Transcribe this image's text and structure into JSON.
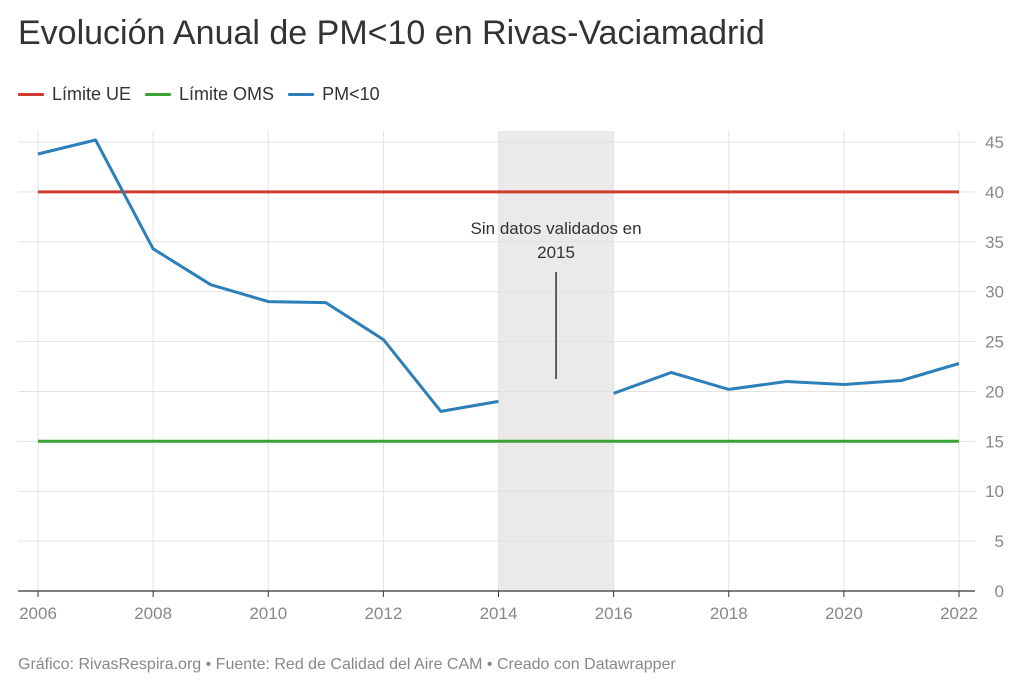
{
  "header": {
    "title": "Evolución Anual de PM<10 en Rivas-Vaciamadrid"
  },
  "legend": {
    "items": [
      {
        "label": "Límite UE",
        "color": "#d03a2f"
      },
      {
        "label": "Límite OMS",
        "color": "#3aa335"
      },
      {
        "label": "PM<10",
        "color": "#2d7fba"
      }
    ]
  },
  "footer": {
    "text": "Gráfico: RivasRespira.org • Fuente: Red de Calidad del Aire CAM • Creado con Datawrapper"
  },
  "chart_data": {
    "type": "line",
    "title": "Evolución Anual de PM<10 en Rivas-Vaciamadrid",
    "xlabel": "",
    "ylabel": "",
    "xlim": [
      2006,
      2022
    ],
    "ylim": [
      0,
      45
    ],
    "x_ticks": [
      "2006",
      "2008",
      "2010",
      "2012",
      "2014",
      "2016",
      "2018",
      "2020",
      "2022"
    ],
    "y_ticks": [
      "0",
      "5",
      "10",
      "15",
      "20",
      "25",
      "30",
      "35",
      "40",
      "45"
    ],
    "grid": true,
    "legend_position": "top-left",
    "series": [
      {
        "name": "Límite UE",
        "color": "#d03a2f",
        "points": [
          [
            2006,
            40
          ],
          [
            2022,
            40
          ]
        ]
      },
      {
        "name": "Límite OMS",
        "color": "#3aa335",
        "points": [
          [
            2006,
            15
          ],
          [
            2022,
            15
          ]
        ]
      },
      {
        "name": "PM<10",
        "color": "#2d7fba",
        "segments": [
          [
            [
              2006,
              43.8
            ],
            [
              2007,
              45.2
            ],
            [
              2008,
              34.3
            ],
            [
              2009,
              30.7
            ],
            [
              2010,
              29.0
            ],
            [
              2011,
              28.9
            ],
            [
              2012,
              25.2
            ],
            [
              2013,
              18.0
            ],
            [
              2014,
              19.0
            ]
          ],
          [
            [
              2016,
              19.8
            ],
            [
              2017,
              21.9
            ],
            [
              2018,
              20.2
            ],
            [
              2019,
              21.0
            ],
            [
              2020,
              20.7
            ],
            [
              2021,
              21.1
            ],
            [
              2022,
              22.8
            ]
          ]
        ]
      }
    ],
    "shaded_range": {
      "from": 2014,
      "to": 2016,
      "color": "#ebe9ea"
    },
    "annotations": [
      {
        "line1": "Sin datos validados en",
        "line2": "2015",
        "x": 2015
      }
    ]
  }
}
